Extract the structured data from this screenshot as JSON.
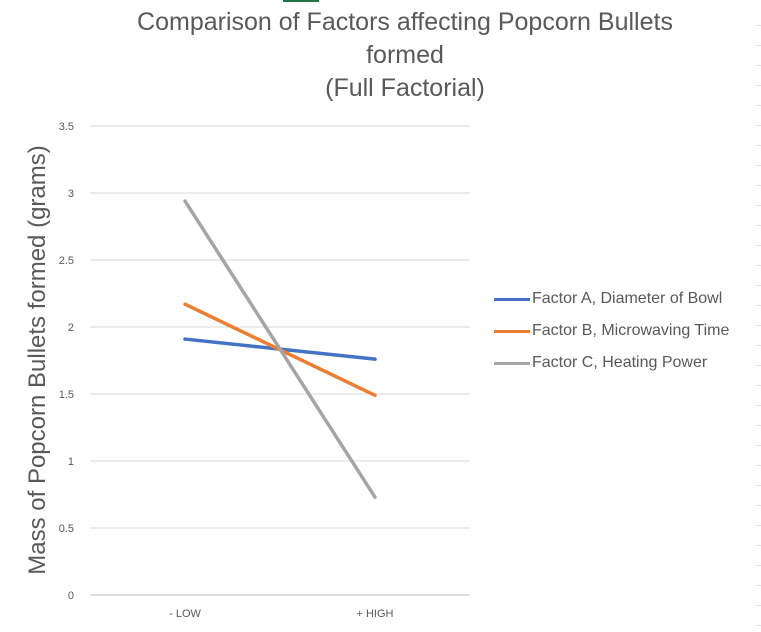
{
  "chart_data": {
    "type": "line",
    "title": "Comparison of Factors affecting Popcorn Bullets formed\n(Full Factorial)",
    "xlabel": "",
    "ylabel": "Mass of Popcorn Bullets formed (grams)",
    "categories": [
      "- LOW",
      "+ HIGH"
    ],
    "ylim": [
      0,
      3.5
    ],
    "yticks": [
      "0",
      "0.5",
      "1",
      "1.5",
      "2",
      "2.5",
      "3",
      "3.5"
    ],
    "grid": true,
    "legend_position": "right",
    "series": [
      {
        "name": "Factor A, Diameter of Bowl",
        "values": [
          1.91,
          1.76
        ],
        "color": "#4472C4"
      },
      {
        "name": "Factor B, Microwaving Time",
        "values": [
          2.17,
          1.49
        ],
        "color": "#ED7D31"
      },
      {
        "name": "Factor C, Heating Power",
        "values": [
          2.94,
          0.73
        ],
        "color": "#A5A5A5"
      }
    ]
  }
}
